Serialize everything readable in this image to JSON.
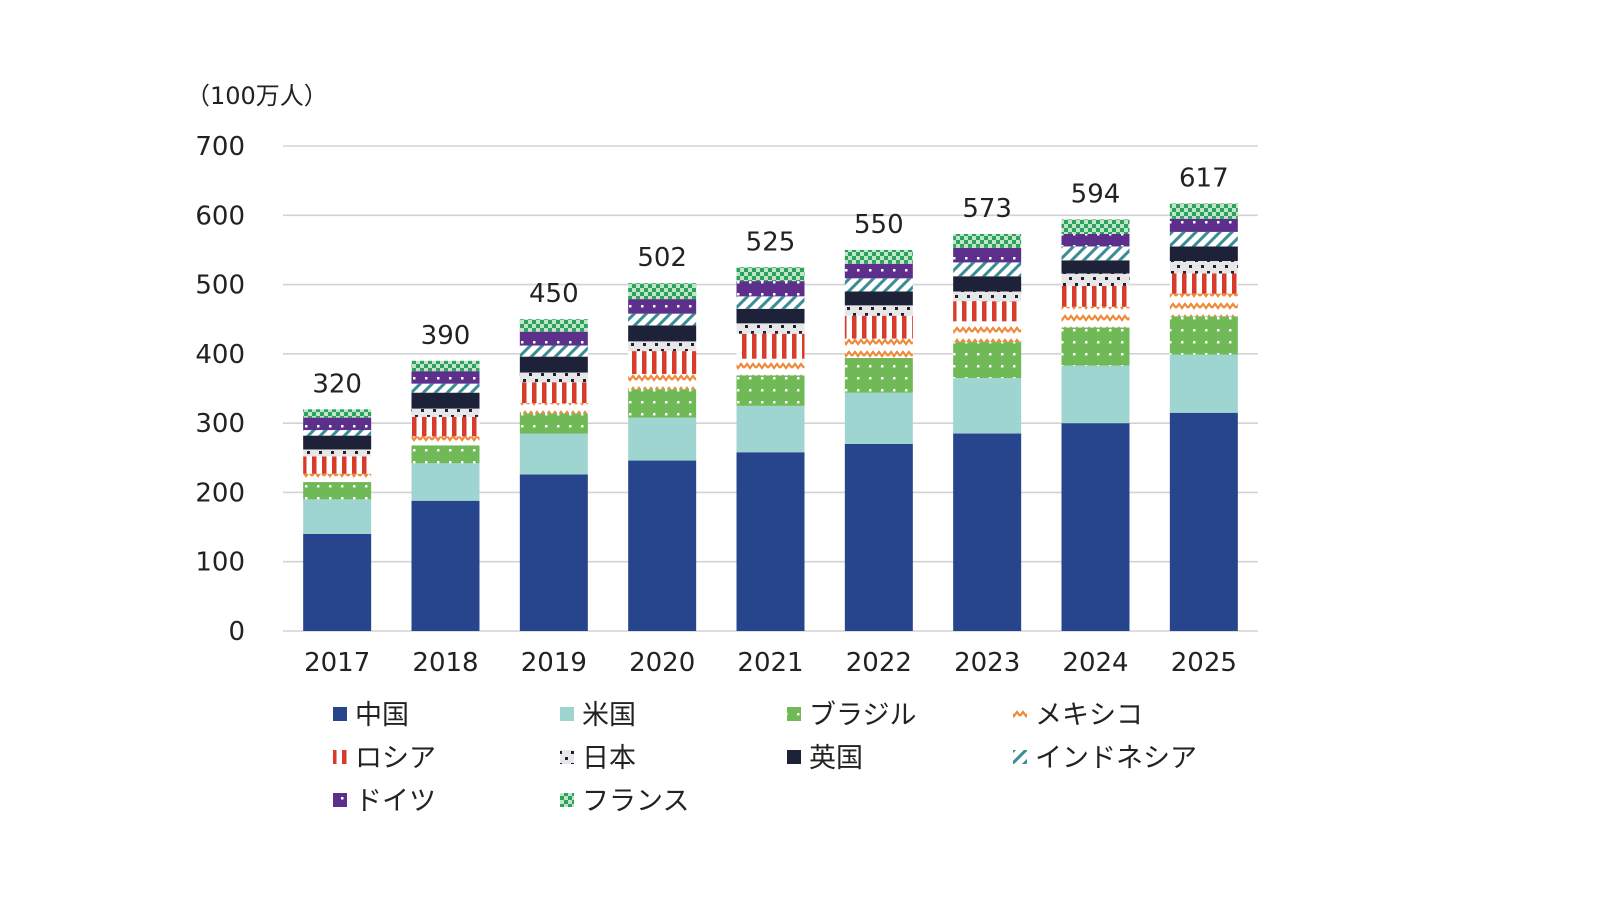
{
  "chart_data": {
    "type": "bar",
    "stacked": true,
    "title": "",
    "unit_label": "（100万人）",
    "xlabel": "",
    "ylabel": "",
    "ylim": [
      0,
      700
    ],
    "yticks": [
      0,
      100,
      200,
      300,
      400,
      500,
      600,
      700
    ],
    "grid": true,
    "legend_position": "bottom",
    "categories": [
      "2017",
      "2018",
      "2019",
      "2020",
      "2021",
      "2022",
      "2023",
      "2024",
      "2025"
    ],
    "totals": [
      320,
      390,
      450,
      502,
      525,
      550,
      573,
      594,
      617
    ],
    "series": [
      {
        "name": "中国",
        "key": "china",
        "color": "#27458c",
        "pattern": "solid",
        "values": [
          140,
          188,
          226,
          246,
          258,
          270,
          285,
          300,
          315
        ]
      },
      {
        "name": "米国",
        "key": "usa",
        "color": "#9fd5d1",
        "pattern": "solid",
        "values": [
          50,
          54,
          59,
          62,
          67,
          74,
          80,
          83,
          84
        ]
      },
      {
        "name": "ブラジル",
        "key": "brazil",
        "color": "#6fb957",
        "pattern": "dots",
        "values": [
          25,
          26,
          29,
          41,
          44,
          50,
          52,
          55,
          55
        ]
      },
      {
        "name": "メキシコ",
        "key": "mexico",
        "color": "#ee8a3a",
        "pattern": "zigzag",
        "values": [
          12,
          13,
          15,
          22,
          24,
          28,
          30,
          30,
          33
        ]
      },
      {
        "name": "ロシア",
        "key": "russia",
        "color": "#d93b2b",
        "pattern": "vstripes",
        "values": [
          25,
          28,
          30,
          33,
          36,
          33,
          29,
          30,
          29
        ]
      },
      {
        "name": "日本",
        "key": "japan",
        "color": "#1f1f33",
        "pattern": "checks",
        "values": [
          10,
          12,
          14,
          14,
          15,
          15,
          14,
          18,
          18
        ]
      },
      {
        "name": "英国",
        "key": "uk",
        "color": "#1e2238",
        "pattern": "solid",
        "values": [
          20,
          23,
          23,
          23,
          21,
          20,
          22,
          19,
          21
        ]
      },
      {
        "name": "インドネシア",
        "key": "indonesia",
        "color": "#3b8d95",
        "pattern": "diagonal",
        "values": [
          8,
          13,
          16,
          17,
          18,
          19,
          20,
          20,
          21
        ]
      },
      {
        "name": "ドイツ",
        "key": "germany",
        "color": "#5b2f8a",
        "pattern": "dots",
        "values": [
          18,
          18,
          20,
          21,
          22,
          21,
          21,
          18,
          19
        ]
      },
      {
        "name": "フランス",
        "key": "france",
        "color": "#2ea25a",
        "pattern": "checker",
        "values": [
          12,
          15,
          18,
          23,
          20,
          20,
          20,
          21,
          22
        ]
      }
    ]
  }
}
